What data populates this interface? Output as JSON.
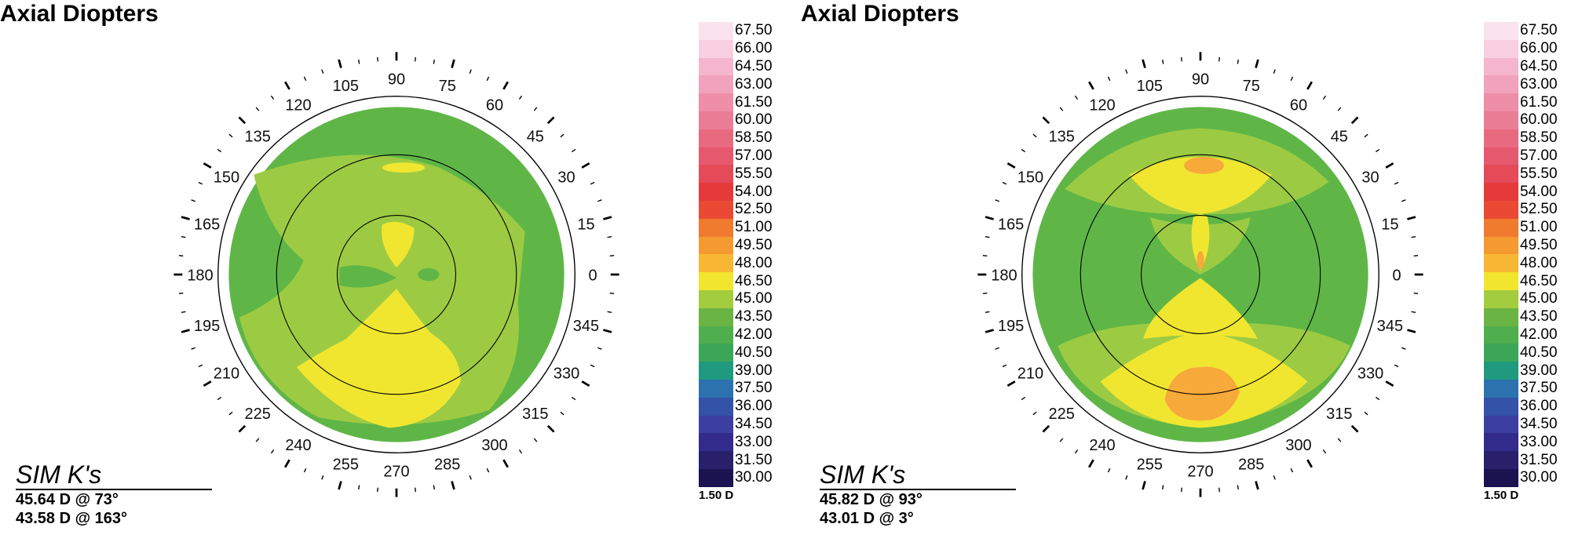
{
  "panels": [
    {
      "title": "Axial Diopters",
      "simk": {
        "label": "SIM K's",
        "k1": "45.64 D @ 73°",
        "k2": "43.58 D @ 163°"
      }
    },
    {
      "title": "Axial Diopters",
      "simk": {
        "label": "SIM K's",
        "k1": "45.82 D @ 93°",
        "k2": "43.01 D @ 3°"
      }
    }
  ],
  "degree_labels": [
    "0",
    "15",
    "30",
    "45",
    "60",
    "75",
    "90",
    "105",
    "120",
    "135",
    "150",
    "165",
    "180",
    "195",
    "210",
    "225",
    "240",
    "255",
    "270",
    "285",
    "300",
    "315",
    "330",
    "345"
  ],
  "scale": {
    "step": "1.50 D",
    "values": [
      "67.50",
      "66.00",
      "64.50",
      "63.00",
      "61.50",
      "60.00",
      "58.50",
      "57.00",
      "55.50",
      "54.00",
      "52.50",
      "51.00",
      "49.50",
      "48.00",
      "46.50",
      "45.00",
      "43.50",
      "42.00",
      "40.50",
      "39.00",
      "37.50",
      "36.00",
      "34.50",
      "33.00",
      "31.50",
      "30.00"
    ],
    "colors": [
      "#fbe3ee",
      "#f8cfe0",
      "#f5b6cd",
      "#f1a2bc",
      "#ee8ea9",
      "#ea7d96",
      "#e86a81",
      "#e6586d",
      "#e44a58",
      "#e63a3a",
      "#ea4a33",
      "#f07a2e",
      "#f59a30",
      "#f7b733",
      "#f2e52f",
      "#a3cc3f",
      "#6ab444",
      "#4fae4d",
      "#3ca658",
      "#1f9a7f",
      "#2b72ae",
      "#3452a8",
      "#3d3fa0",
      "#332b8c",
      "#28206a",
      "#1a1350"
    ]
  },
  "colors": {
    "green_dark": "#5fb647",
    "green_mid": "#9ccb43",
    "yellow": "#f0e630",
    "orange": "#f7a93a"
  }
}
